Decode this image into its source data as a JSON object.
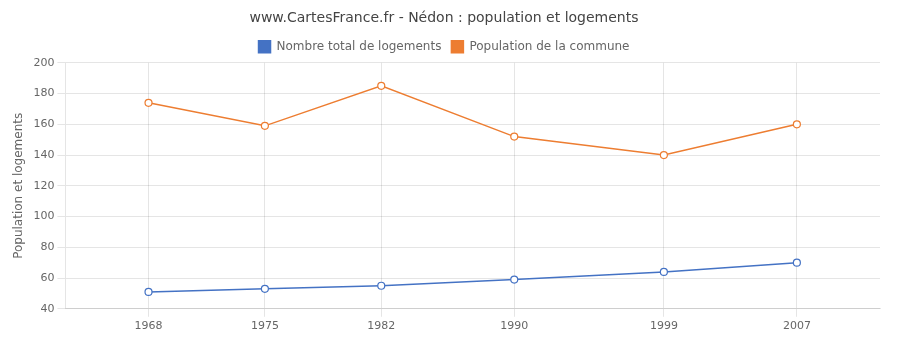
{
  "chart_data": {
    "type": "line",
    "title": "www.CartesFrance.fr - Nédon : population et logements",
    "ylabel": "Population et logements",
    "x": [
      1968,
      1975,
      1982,
      1990,
      1999,
      2007
    ],
    "series": [
      {
        "name": "Nombre total de logements",
        "color": "#4472c4",
        "values": [
          51,
          53,
          55,
          59,
          64,
          70
        ]
      },
      {
        "name": "Population de la commune",
        "color": "#ed7d31",
        "values": [
          174,
          159,
          185,
          152,
          140,
          160
        ]
      }
    ],
    "xlim": [
      1963,
      2012
    ],
    "xticks": [
      1968,
      1975,
      1982,
      1990,
      1999,
      2007
    ],
    "ylim": [
      40,
      200
    ],
    "yticks": [
      40,
      60,
      80,
      100,
      120,
      140,
      160,
      180,
      200
    ],
    "grid": true,
    "legend": "top",
    "marker": "circle"
  }
}
